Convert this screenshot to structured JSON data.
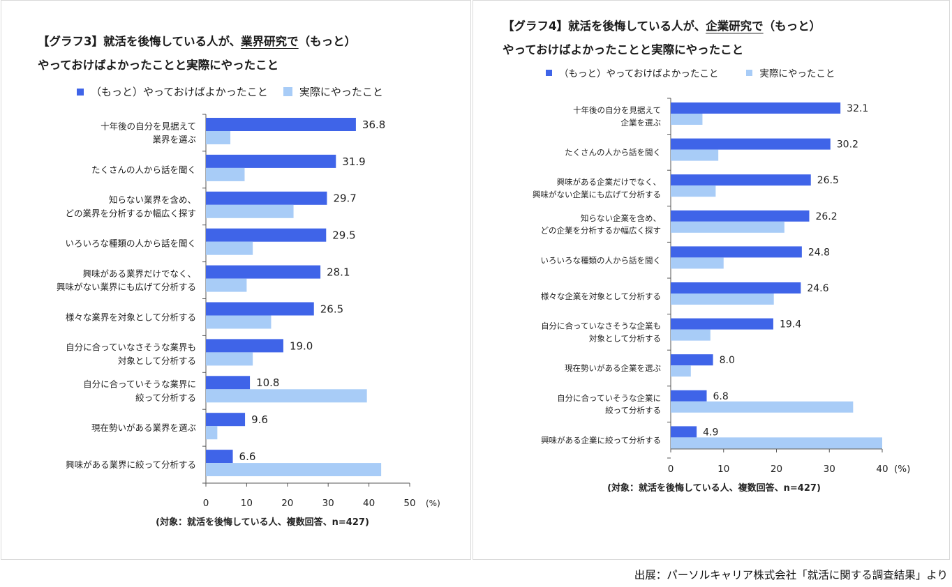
{
  "colors": {
    "series1": "#3f64e8",
    "series2": "#a8ccf7",
    "axis": "#555555"
  },
  "chart_data": [
    {
      "type": "bar",
      "orientation": "horizontal",
      "title_line1_pre": "【グラフ3】就活を後悔している人が、",
      "title_line1_underlined": "業界研究で",
      "title_line1_post": "（もっと）",
      "title_line2": "やっておけばよかったことと実際にやったこと",
      "categories": [
        [
          "十年後の自分を見据えて",
          "業界を選ぶ"
        ],
        [
          "たくさんの人から話を聞く"
        ],
        [
          "知らない業界を含め、",
          "どの業界を分析するか幅広く探す"
        ],
        [
          "いろいろな種類の人から話を聞く"
        ],
        [
          "興味がある業界だけでなく、",
          "興味がない業界にも広げて分析する"
        ],
        [
          "様々な業界を対象として分析する"
        ],
        [
          "自分に合っていなさそうな業界も",
          "対象として分析する"
        ],
        [
          "自分に合っていそうな業界に",
          "絞って分析する"
        ],
        [
          "現在勢いがある業界を選ぶ"
        ],
        [
          "興味がある業界に絞って分析する"
        ]
      ],
      "series": [
        {
          "name": "（もっと）やっておけばよかったこと",
          "values": [
            36.8,
            31.9,
            29.7,
            29.5,
            28.1,
            26.5,
            19.0,
            10.8,
            9.6,
            6.6
          ],
          "labels": [
            "36.8",
            "31.9",
            "29.7",
            "29.5",
            "28.1",
            "26.5",
            "19.0",
            "10.8",
            "9.6",
            "6.6"
          ]
        },
        {
          "name": "実際にやったこと",
          "values": [
            6.0,
            9.5,
            21.5,
            11.5,
            10.0,
            16.0,
            11.5,
            39.5,
            2.8,
            43.0
          ]
        }
      ],
      "xlim": [
        0,
        50
      ],
      "ticks": [
        "0",
        "10",
        "20",
        "30",
        "40",
        "50"
      ],
      "xunit": "(%)",
      "note": "(対象：就活を後悔している人、複数回答、n=427)"
    },
    {
      "type": "bar",
      "orientation": "horizontal",
      "title_line1_pre": "【グラフ4】就活を後悔している人が、",
      "title_line1_underlined": "企業研究で",
      "title_line1_post": "（もっと）",
      "title_line2": "やっておけばよかったことと実際にやったこと",
      "categories": [
        [
          "十年後の自分を見据えて",
          "企業を選ぶ"
        ],
        [
          "たくさんの人から話を聞く"
        ],
        [
          "興味がある企業だけでなく、",
          "興味がない企業にも広げて分析する"
        ],
        [
          "知らない企業を含め、",
          "どの企業を分析するか幅広く探す"
        ],
        [
          "いろいろな種類の人から話を聞く"
        ],
        [
          "様々な企業を対象として分析する"
        ],
        [
          "自分に合っていなさそうな企業も",
          "対象として分析する"
        ],
        [
          "現在勢いがある企業を選ぶ"
        ],
        [
          "自分に合っていそうな企業に",
          "絞って分析する"
        ],
        [
          "興味がある企業に絞って分析する"
        ]
      ],
      "series": [
        {
          "name": "（もっと）やっておけばよかったこと",
          "values": [
            32.1,
            30.2,
            26.5,
            26.2,
            24.8,
            24.6,
            19.4,
            8.0,
            6.8,
            4.9
          ],
          "labels": [
            "32.1",
            "30.2",
            "26.5",
            "26.2",
            "24.8",
            "24.6",
            "19.4",
            "8.0",
            "6.8",
            "4.9"
          ]
        },
        {
          "name": "実際にやったこと",
          "values": [
            6.0,
            9.0,
            8.5,
            21.5,
            10.0,
            19.5,
            7.5,
            3.8,
            34.5,
            40.0
          ]
        }
      ],
      "xlim": [
        0,
        40
      ],
      "ticks": [
        "0",
        "10",
        "20",
        "30",
        "40"
      ],
      "xunit": "(%)",
      "note": "(対象：就活を後悔している人、複数回答、n=427)"
    }
  ],
  "source": "出展：パーソルキャリア株式会社「就活に関する調査結果」より"
}
